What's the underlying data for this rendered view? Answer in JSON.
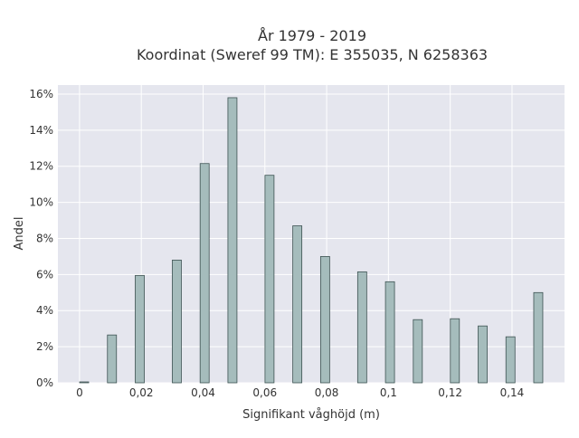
{
  "chart_data": {
    "type": "bar",
    "title_line1": "År 1979 - 2019",
    "title_line2": "Koordinat (Sweref 99 TM): E 355035, N 6258363",
    "xlabel": "Signifikant våghöjd (m)",
    "ylabel": "Andel",
    "xlim": [
      -0.007,
      0.157
    ],
    "ylim": [
      0,
      16.5
    ],
    "x_ticks": [
      0,
      0.02,
      0.04,
      0.06,
      0.08,
      0.1,
      0.12,
      0.14
    ],
    "x_tick_labels": [
      "0",
      "0,02",
      "0,04",
      "0,06",
      "0,08",
      "0,1",
      "0,12",
      "0,14"
    ],
    "y_ticks": [
      0,
      2,
      4,
      6,
      8,
      10,
      12,
      14,
      16
    ],
    "y_tick_labels": [
      "0%",
      "2%",
      "4%",
      "6%",
      "8%",
      "10%",
      "12%",
      "14%",
      "16%"
    ],
    "bars": [
      {
        "x": 0.0015,
        "value": 0.05
      },
      {
        "x": 0.0105,
        "value": 2.65
      },
      {
        "x": 0.0195,
        "value": 5.95
      },
      {
        "x": 0.0315,
        "value": 6.8
      },
      {
        "x": 0.0405,
        "value": 12.15
      },
      {
        "x": 0.0495,
        "value": 15.8
      },
      {
        "x": 0.0615,
        "value": 11.5
      },
      {
        "x": 0.0705,
        "value": 8.7
      },
      {
        "x": 0.0795,
        "value": 7.0
      },
      {
        "x": 0.0915,
        "value": 6.15
      },
      {
        "x": 0.1005,
        "value": 5.6
      },
      {
        "x": 0.1095,
        "value": 3.5
      },
      {
        "x": 0.1215,
        "value": 3.55
      },
      {
        "x": 0.1305,
        "value": 3.15
      },
      {
        "x": 0.1395,
        "value": 2.55
      },
      {
        "x": 0.1485,
        "value": 5.0
      }
    ],
    "grid": true,
    "colors": {
      "bar_fill": "#a5bcbc",
      "bar_stroke": "#3d5252",
      "plot_bg": "#e5e6ee",
      "grid": "#ffffff"
    }
  }
}
